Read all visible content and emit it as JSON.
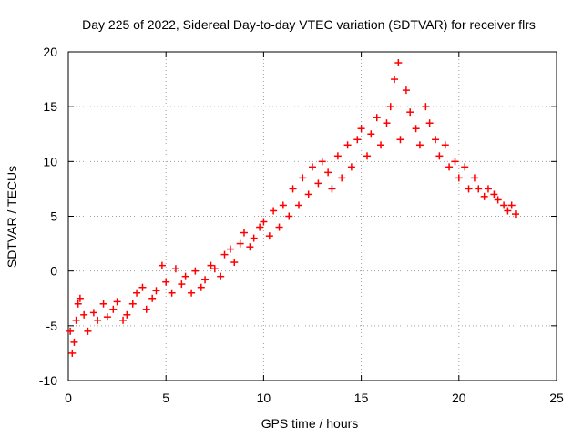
{
  "chart_data": {
    "type": "scatter",
    "title": "Day 225 of 2022, Sidereal Day-to-day VTEC variation (SDTVAR) for receiver flrs",
    "xlabel": "GPS time / hours",
    "ylabel": "SDTVAR / TECUs",
    "xlim": [
      0,
      25
    ],
    "ylim": [
      -10,
      20
    ],
    "xticks": [
      "0",
      "5",
      "10",
      "15",
      "20",
      "25"
    ],
    "yticks": [
      "-10",
      "-5",
      "0",
      "5",
      "10",
      "15",
      "20"
    ],
    "grid": true,
    "marker": "+",
    "series": [
      {
        "name": "SDTVAR",
        "color": "#ff0000",
        "x": [
          0.1,
          0.2,
          0.3,
          0.4,
          0.5,
          0.6,
          0.8,
          1.0,
          1.3,
          1.5,
          1.8,
          2.0,
          2.3,
          2.5,
          2.8,
          3.0,
          3.3,
          3.5,
          3.8,
          4.0,
          4.3,
          4.5,
          4.8,
          5.0,
          5.3,
          5.5,
          5.8,
          6.0,
          6.3,
          6.5,
          6.8,
          7.0,
          7.3,
          7.5,
          7.8,
          8.0,
          8.3,
          8.5,
          8.8,
          9.0,
          9.3,
          9.5,
          9.8,
          10.0,
          10.3,
          10.5,
          10.8,
          11.0,
          11.3,
          11.5,
          11.8,
          12.0,
          12.3,
          12.5,
          12.8,
          13.0,
          13.3,
          13.5,
          13.8,
          14.0,
          14.3,
          14.5,
          14.8,
          15.0,
          15.3,
          15.5,
          15.8,
          16.0,
          16.3,
          16.5,
          16.7,
          16.9,
          17.0,
          17.3,
          17.5,
          17.8,
          18.0,
          18.3,
          18.5,
          18.8,
          19.0,
          19.3,
          19.5,
          19.8,
          20.0,
          20.3,
          20.5,
          20.8,
          21.0,
          21.3,
          21.5,
          21.8,
          22.0,
          22.3,
          22.5,
          22.7,
          22.9
        ],
        "y": [
          -5.5,
          -7.5,
          -6.5,
          -4.5,
          -3.0,
          -2.5,
          -4.0,
          -5.5,
          -3.8,
          -4.5,
          -3.0,
          -4.2,
          -3.5,
          -2.8,
          -4.5,
          -4.0,
          -3.0,
          -2.0,
          -1.5,
          -3.5,
          -2.5,
          -1.8,
          0.5,
          -1.0,
          -2.0,
          0.2,
          -1.2,
          -0.5,
          -2.0,
          0.0,
          -1.5,
          -0.8,
          0.5,
          0.2,
          -0.5,
          1.5,
          2.0,
          0.8,
          2.5,
          3.5,
          2.2,
          3.0,
          4.0,
          4.5,
          3.2,
          5.5,
          4.0,
          6.0,
          5.0,
          7.5,
          6.0,
          8.5,
          7.0,
          9.5,
          8.0,
          10.0,
          9.0,
          7.5,
          10.5,
          8.5,
          11.5,
          9.5,
          12.0,
          13.0,
          10.5,
          12.5,
          14.0,
          11.5,
          13.5,
          15.0,
          17.5,
          19.0,
          12.0,
          16.5,
          14.5,
          13.0,
          11.5,
          15.0,
          13.5,
          12.0,
          10.5,
          11.5,
          9.5,
          10.0,
          8.5,
          9.5,
          7.5,
          8.5,
          7.5,
          6.8,
          7.5,
          7.0,
          6.5,
          6.0,
          5.5,
          6.0,
          5.2
        ]
      }
    ]
  }
}
